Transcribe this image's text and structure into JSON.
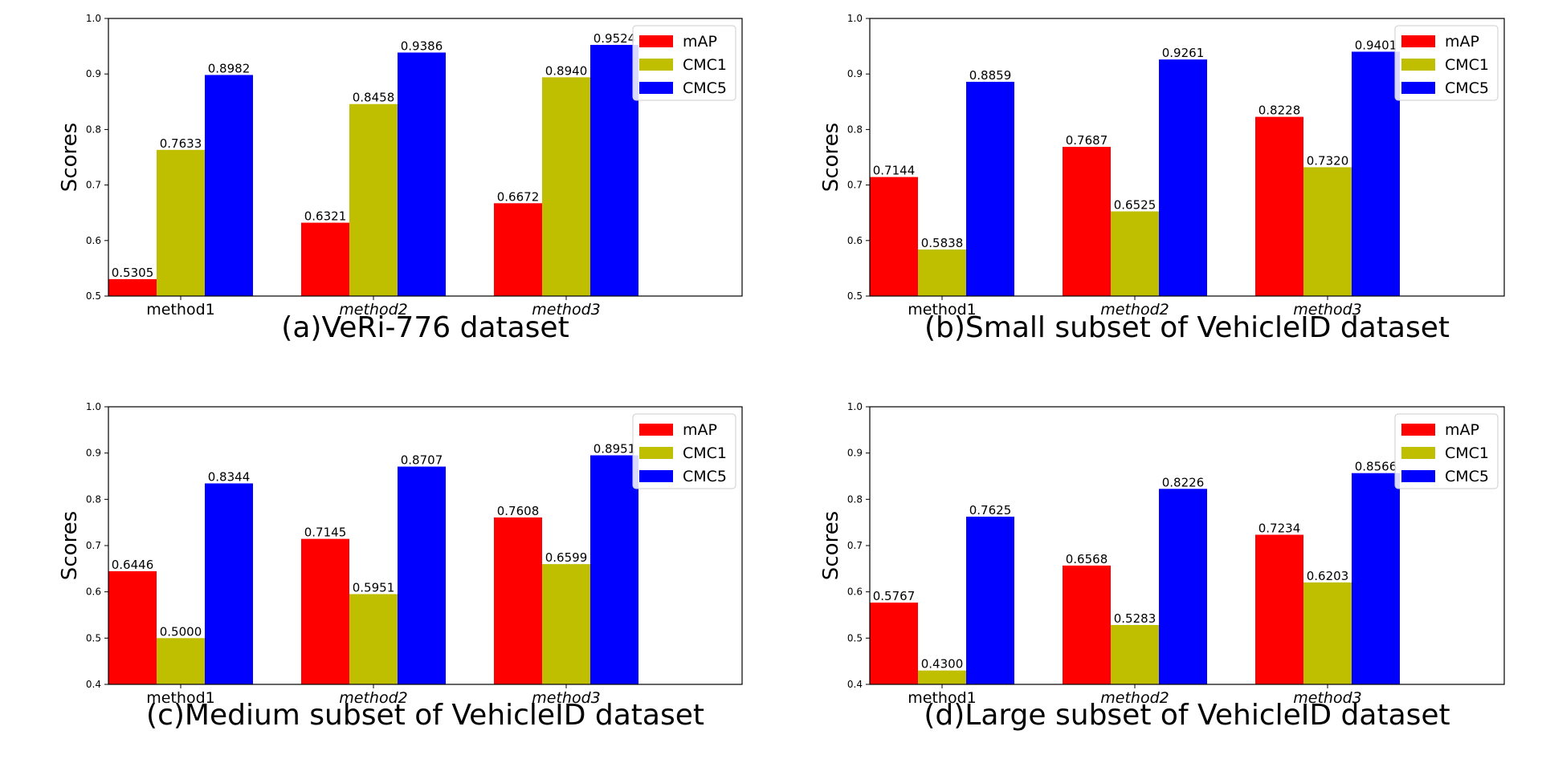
{
  "colors": {
    "mAP": "#ff0000",
    "CMC1": "#bfbf00",
    "CMC5": "#0000ff"
  },
  "chart_data": [
    {
      "type": "bar",
      "title": "(a)VeRi-776 dataset",
      "xlabel": "",
      "ylabel": "Scores",
      "ylim": [
        0.5,
        1.0
      ],
      "yticks": [
        "0.5",
        "0.6",
        "0.7",
        "0.8",
        "0.9",
        "1.0"
      ],
      "categories": [
        "method1",
        "method2",
        "method3"
      ],
      "italic_categories": [
        false,
        true,
        true
      ],
      "legend": "top-right",
      "series": [
        {
          "name": "mAP",
          "values": [
            0.5305,
            0.6321,
            0.6672
          ],
          "labels": [
            "0.5305",
            "0.6321",
            "0.6672"
          ]
        },
        {
          "name": "CMC1",
          "values": [
            0.7633,
            0.8458,
            0.894
          ],
          "labels": [
            "0.7633",
            "0.8458",
            "0.8940"
          ]
        },
        {
          "name": "CMC5",
          "values": [
            0.8982,
            0.9386,
            0.9524
          ],
          "labels": [
            "0.8982",
            "0.9386",
            "0.9524"
          ]
        }
      ]
    },
    {
      "type": "bar",
      "title": "(b)Small subset of VehicleID dataset",
      "xlabel": "",
      "ylabel": "Scores",
      "ylim": [
        0.5,
        1.0
      ],
      "yticks": [
        "0.5",
        "0.6",
        "0.7",
        "0.8",
        "0.9",
        "1.0"
      ],
      "categories": [
        "method1",
        "method2",
        "method3"
      ],
      "italic_categories": [
        false,
        true,
        true
      ],
      "legend": "top-right",
      "series": [
        {
          "name": "mAP",
          "values": [
            0.7144,
            0.7687,
            0.8228
          ],
          "labels": [
            "0.7144",
            "0.7687",
            "0.8228"
          ]
        },
        {
          "name": "CMC1",
          "values": [
            0.5838,
            0.6525,
            0.732
          ],
          "labels": [
            "0.5838",
            "0.6525",
            "0.7320"
          ]
        },
        {
          "name": "CMC5",
          "values": [
            0.8859,
            0.9261,
            0.9401
          ],
          "labels": [
            "0.8859",
            "0.9261",
            "0.9401"
          ]
        }
      ]
    },
    {
      "type": "bar",
      "title": "(c)Medium subset of VehicleID dataset",
      "xlabel": "",
      "ylabel": "Scores",
      "ylim": [
        0.4,
        1.0
      ],
      "yticks": [
        "0.4",
        "0.5",
        "0.6",
        "0.7",
        "0.8",
        "0.9",
        "1.0"
      ],
      "categories": [
        "method1",
        "method2",
        "method3"
      ],
      "italic_categories": [
        false,
        true,
        true
      ],
      "legend": "top-right",
      "series": [
        {
          "name": "mAP",
          "values": [
            0.6446,
            0.7145,
            0.7608
          ],
          "labels": [
            "0.6446",
            "0.7145",
            "0.7608"
          ]
        },
        {
          "name": "CMC1",
          "values": [
            0.5,
            0.5951,
            0.6599
          ],
          "labels": [
            "0.5000",
            "0.5951",
            "0.6599"
          ]
        },
        {
          "name": "CMC5",
          "values": [
            0.8344,
            0.8707,
            0.8951
          ],
          "labels": [
            "0.8344",
            "0.8707",
            "0.8951"
          ]
        }
      ]
    },
    {
      "type": "bar",
      "title": "(d)Large subset of VehicleID dataset",
      "xlabel": "",
      "ylabel": "Scores",
      "ylim": [
        0.4,
        1.0
      ],
      "yticks": [
        "0.4",
        "0.5",
        "0.6",
        "0.7",
        "0.8",
        "0.9",
        "1.0"
      ],
      "categories": [
        "method1",
        "method2",
        "method3"
      ],
      "italic_categories": [
        false,
        true,
        true
      ],
      "legend": "top-right",
      "series": [
        {
          "name": "mAP",
          "values": [
            0.5767,
            0.6568,
            0.7234
          ],
          "labels": [
            "0.5767",
            "0.6568",
            "0.7234"
          ]
        },
        {
          "name": "CMC1",
          "values": [
            0.43,
            0.5283,
            0.6203
          ],
          "labels": [
            "0.4300",
            "0.5283",
            "0.6203"
          ]
        },
        {
          "name": "CMC5",
          "values": [
            0.7625,
            0.8226,
            0.8566
          ],
          "labels": [
            "0.7625",
            "0.8226",
            "0.8566"
          ]
        }
      ]
    }
  ]
}
